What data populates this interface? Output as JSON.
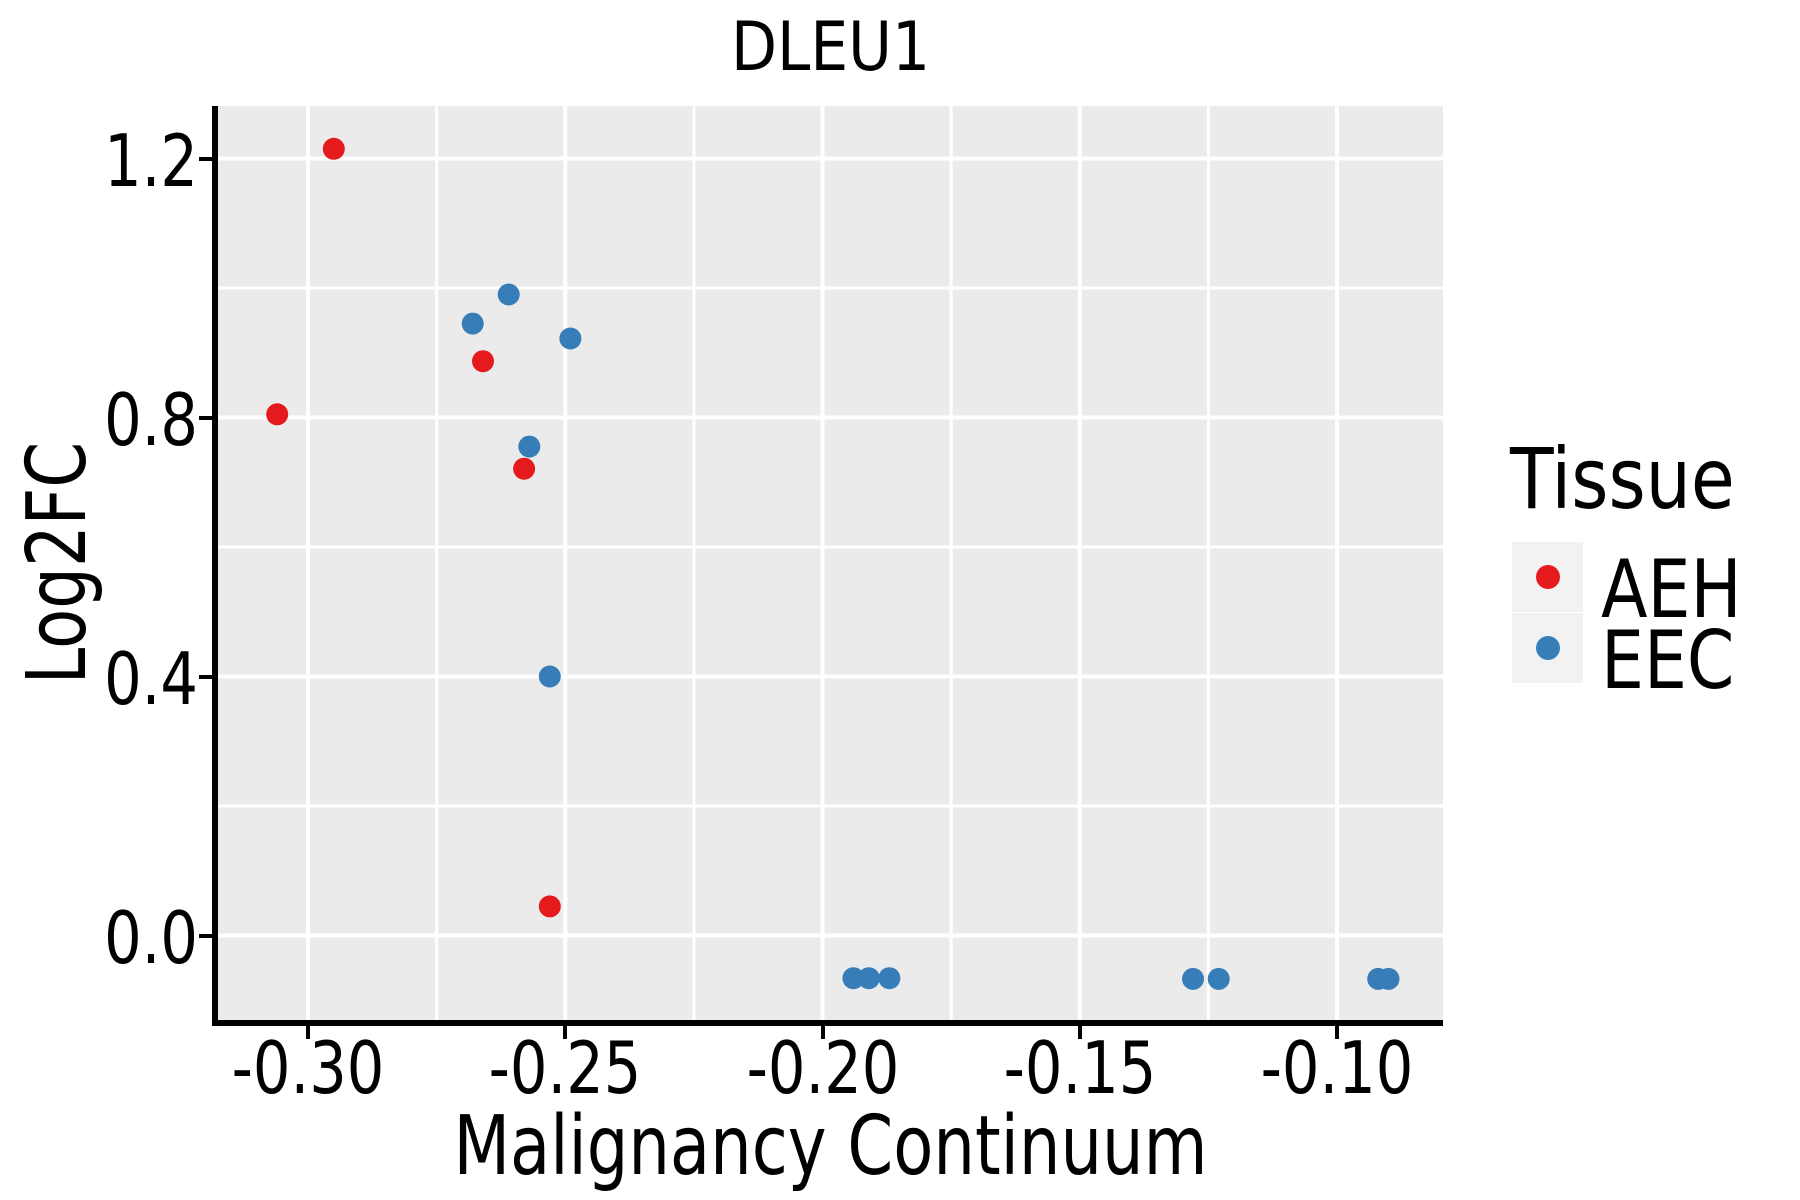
{
  "title": "DLEU1",
  "chart_data": {
    "type": "scatter",
    "title": "DLEU1",
    "xlabel": "Malignancy Continuum",
    "ylabel": "Log2FC",
    "xlim": [
      -0.3175,
      -0.0794
    ],
    "ylim": [
      -0.1305,
      1.2811
    ],
    "x_ticks": [
      -0.3,
      -0.25,
      -0.2,
      -0.15,
      -0.1
    ],
    "x_tick_labels": [
      "-0.30",
      "-0.25",
      "-0.20",
      "-0.15",
      "-0.10"
    ],
    "y_ticks": [
      0.0,
      0.4,
      0.8,
      1.2
    ],
    "y_tick_labels": [
      "0.0",
      "0.4",
      "0.8",
      "1.2"
    ],
    "x_minor_ticks": [
      -0.275,
      -0.225,
      -0.175,
      -0.125
    ],
    "y_minor_ticks": [
      0.2,
      0.6,
      1.0
    ],
    "grid": true,
    "panel_bg": "#EBEBEB",
    "grid_color": "#FFFFFF",
    "point_radius_px": 11,
    "legend_position": "right",
    "legend_title": "Tissue",
    "series": [
      {
        "name": "AEH",
        "color": "#E41A1C",
        "points": [
          [
            -0.295,
            1.215
          ],
          [
            -0.306,
            0.805
          ],
          [
            -0.266,
            0.887
          ],
          [
            -0.258,
            0.721
          ],
          [
            -0.253,
            0.045
          ]
        ]
      },
      {
        "name": "EEC",
        "color": "#377EB8",
        "points": [
          [
            -0.261,
            0.99
          ],
          [
            -0.268,
            0.945
          ],
          [
            -0.249,
            0.922
          ],
          [
            -0.257,
            0.755
          ],
          [
            -0.253,
            0.4
          ],
          [
            -0.194,
            -0.066
          ],
          [
            -0.191,
            -0.066
          ],
          [
            -0.187,
            -0.066
          ],
          [
            -0.128,
            -0.067
          ],
          [
            -0.123,
            -0.067
          ],
          [
            -0.092,
            -0.067
          ],
          [
            -0.09,
            -0.067
          ]
        ]
      }
    ]
  },
  "legend": {
    "title": "Tissue",
    "items": [
      {
        "label": "AEH",
        "color": "#E41A1C"
      },
      {
        "label": "EEC",
        "color": "#377EB8"
      }
    ]
  }
}
